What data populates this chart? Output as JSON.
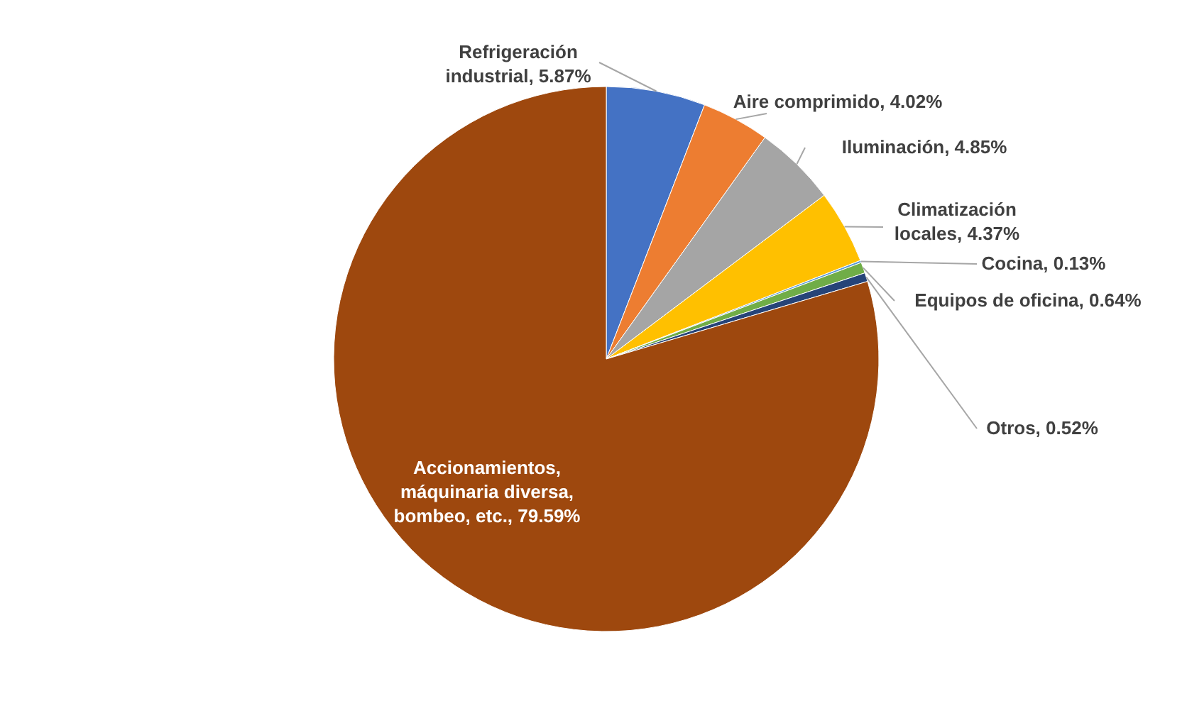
{
  "chart_data": {
    "type": "pie",
    "categories": [
      "Refrigeración industrial",
      "Aire comprimido",
      "Iluminación",
      "Climatización locales",
      "Cocina",
      "Equipos de oficina",
      "Otros",
      "Accionamientos, máquinaria diversa, bombeo, etc."
    ],
    "values": [
      5.87,
      4.02,
      4.85,
      4.37,
      0.13,
      0.64,
      0.52,
      79.59
    ],
    "value_labels": [
      "5.87%",
      "4.02%",
      "4.85%",
      "4.37%",
      "0.13%",
      "0.64%",
      "0.52%",
      "79.59%"
    ],
    "colors": [
      "#4472c4",
      "#ed7d31",
      "#a5a5a5",
      "#ffc000",
      "#5b9bd5",
      "#70ad47",
      "#264478",
      "#9e480e"
    ]
  }
}
